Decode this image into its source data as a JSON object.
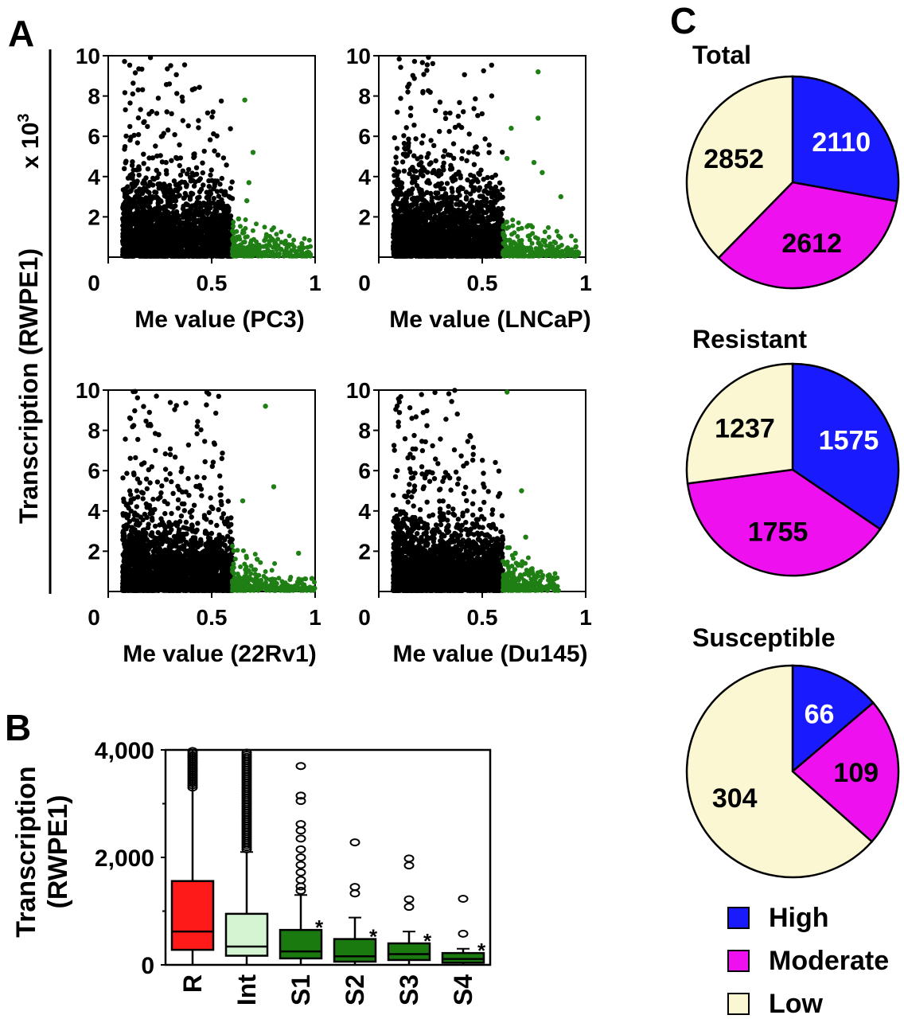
{
  "panel_labels": {
    "a": "A",
    "b": "B",
    "c": "C"
  },
  "colors": {
    "black": "#000000",
    "green": "#1f7f14",
    "red": "#ff1a1a",
    "light_green": "#d4f5d2",
    "dark_green": "#1a7a10",
    "high": "#1a1aff",
    "moderate": "#ee10ee",
    "low": "#fbf7d2"
  },
  "panel_a": {
    "ylabel": "Transcription (RWPE1)",
    "yscale": "x 10",
    "yscale_exp": "3",
    "y_ticks": [
      "10",
      "8",
      "6",
      "4",
      "2"
    ],
    "x_ticks": [
      "0",
      "0.5",
      "1"
    ],
    "plots": [
      {
        "xlabel": "Me value (PC3)",
        "threshold": 0.6,
        "xmax_green": 0.98,
        "cloud_top": 4.5,
        "black_seed": 11,
        "green_seed": 21,
        "green_outliers": [
          [
            0.66,
            7.8
          ],
          [
            0.7,
            5.2
          ],
          [
            0.68,
            3.7
          ],
          [
            0.67,
            2.8
          ],
          [
            0.63,
            1.9
          ]
        ]
      },
      {
        "xlabel": "Me value (LNCaP)",
        "threshold": 0.6,
        "xmax_green": 0.97,
        "cloud_top": 5.5,
        "black_seed": 12,
        "green_seed": 22,
        "green_outliers": [
          [
            0.77,
            9.2
          ],
          [
            0.77,
            6.9
          ],
          [
            0.64,
            6.4
          ],
          [
            0.75,
            4.7
          ],
          [
            0.79,
            4.2
          ],
          [
            0.88,
            3.0
          ],
          [
            0.62,
            4.9
          ]
        ]
      },
      {
        "xlabel": "Me value (22Rv1)",
        "threshold": 0.6,
        "xmax_green": 1.0,
        "cloud_top": 4.0,
        "black_seed": 13,
        "green_seed": 23,
        "green_outliers": [
          [
            0.76,
            9.2
          ],
          [
            0.8,
            5.2
          ],
          [
            0.65,
            4.5
          ],
          [
            0.92,
            1.9
          ],
          [
            0.72,
            1.6
          ]
        ]
      },
      {
        "xlabel": "Me value (Du145)",
        "threshold": 0.6,
        "xmax_green": 0.87,
        "cloud_top": 4.0,
        "black_seed": 14,
        "green_seed": 24,
        "green_outliers": [
          [
            0.62,
            9.9
          ],
          [
            0.69,
            5.0
          ],
          [
            0.71,
            2.7
          ],
          [
            0.66,
            1.9
          ]
        ]
      }
    ]
  },
  "chart_data": [
    {
      "type": "box",
      "ylabel": "Transcription (RWPE1)",
      "ylim": [
        0,
        4000
      ],
      "y_ticks": [
        "4,000",
        "2,000",
        "0"
      ],
      "categories": [
        "R",
        "Int",
        "S1",
        "S2",
        "S3",
        "S4"
      ],
      "boxes": [
        {
          "label": "R",
          "q1": 280,
          "median": 620,
          "q3": 1560,
          "whisker_low": 0,
          "whisker_high": 4000,
          "color": "red",
          "outliers_dense": [
            3300,
            4000
          ],
          "outliers": []
        },
        {
          "label": "Int",
          "q1": 170,
          "median": 340,
          "q3": 950,
          "whisker_low": 0,
          "whisker_high": 2100,
          "color": "light_green",
          "outliers_dense": [
            2150,
            3950
          ],
          "outliers": []
        },
        {
          "label": "S1",
          "q1": 120,
          "median": 250,
          "q3": 650,
          "whisker_low": 0,
          "whisker_high": 1300,
          "color": "dark_green",
          "sig": "*",
          "outliers": [
            1380,
            1460,
            1580,
            1720,
            1860,
            2000,
            2150,
            2350,
            2500,
            2620,
            3050,
            3150,
            3700
          ]
        },
        {
          "label": "S2",
          "q1": 60,
          "median": 160,
          "q3": 480,
          "whisker_low": 0,
          "whisker_high": 880,
          "color": "dark_green",
          "sig": "*",
          "outliers": [
            1330,
            1450,
            2280
          ]
        },
        {
          "label": "S3",
          "q1": 90,
          "median": 200,
          "q3": 400,
          "whisker_low": 0,
          "whisker_high": 620,
          "color": "dark_green",
          "sig": "*",
          "outliers": [
            1080,
            1220,
            1850,
            1980
          ]
        },
        {
          "label": "S4",
          "q1": 40,
          "median": 110,
          "q3": 220,
          "whisker_low": 0,
          "whisker_high": 300,
          "color": "dark_green",
          "sig": "*",
          "outliers": [
            580,
            1230
          ]
        }
      ]
    },
    {
      "type": "pie",
      "pies": [
        {
          "title": "Total",
          "slices": [
            {
              "label": "High",
              "value": 2110,
              "color": "high"
            },
            {
              "label": "Moderate",
              "value": 2612,
              "color": "moderate"
            },
            {
              "label": "Low",
              "value": 2852,
              "color": "low"
            }
          ]
        },
        {
          "title": "Resistant",
          "slices": [
            {
              "label": "High",
              "value": 1575,
              "color": "high"
            },
            {
              "label": "Moderate",
              "value": 1755,
              "color": "moderate"
            },
            {
              "label": "Low",
              "value": 1237,
              "color": "low"
            }
          ]
        },
        {
          "title": "Susceptible",
          "slices": [
            {
              "label": "High",
              "value": 66,
              "color": "high"
            },
            {
              "label": "Moderate",
              "value": 109,
              "color": "moderate"
            },
            {
              "label": "Low",
              "value": 304,
              "color": "low"
            }
          ]
        }
      ],
      "legend": [
        {
          "label": "High",
          "color": "high"
        },
        {
          "label": "Moderate",
          "color": "moderate"
        },
        {
          "label": "Low",
          "color": "low"
        }
      ]
    }
  ]
}
